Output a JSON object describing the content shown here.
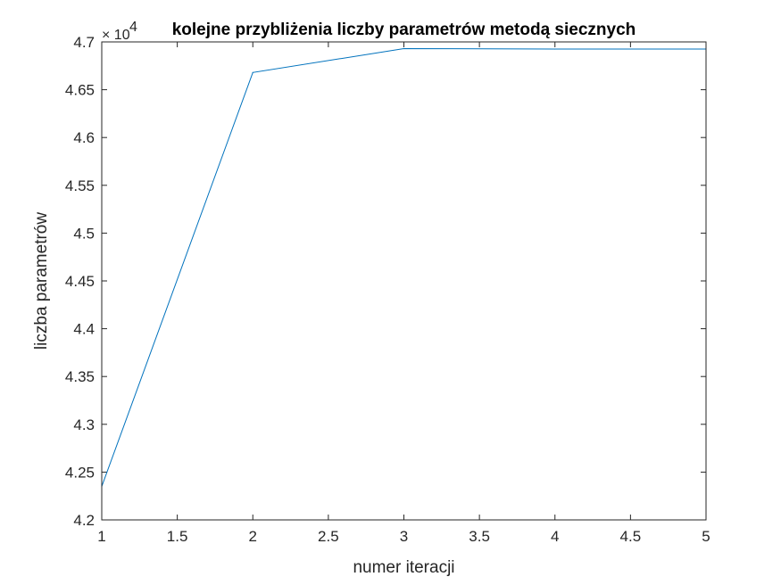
{
  "chart_data": {
    "type": "line",
    "title": "kolejne przybliżenia liczby parametrów metodą siecznych",
    "xlabel": "numer iteracji",
    "ylabel": "liczba parametrów",
    "xlim": [
      1,
      5
    ],
    "ylim": [
      42000,
      47000
    ],
    "xticks": [
      1,
      1.5,
      2,
      2.5,
      3,
      3.5,
      4,
      4.5,
      5
    ],
    "xtick_labels": [
      "1",
      "1.5",
      "2",
      "2.5",
      "3",
      "3.5",
      "4",
      "4.5",
      "5"
    ],
    "yticks": [
      42000,
      42500,
      43000,
      43500,
      44000,
      44500,
      45000,
      45500,
      46000,
      46500,
      47000
    ],
    "ytick_labels": [
      "4.2",
      "4.25",
      "4.3",
      "4.35",
      "4.4",
      "4.45",
      "4.5",
      "4.55",
      "4.6",
      "4.65",
      "4.7"
    ],
    "y_exponent_base": "× 10",
    "y_exponent_power": "4",
    "grid": false,
    "line_color": "#0072BD",
    "series": [
      {
        "x": [
          1,
          2,
          3,
          4,
          5
        ],
        "y": [
          42350,
          46680,
          46930,
          46925,
          46925
        ]
      }
    ]
  }
}
